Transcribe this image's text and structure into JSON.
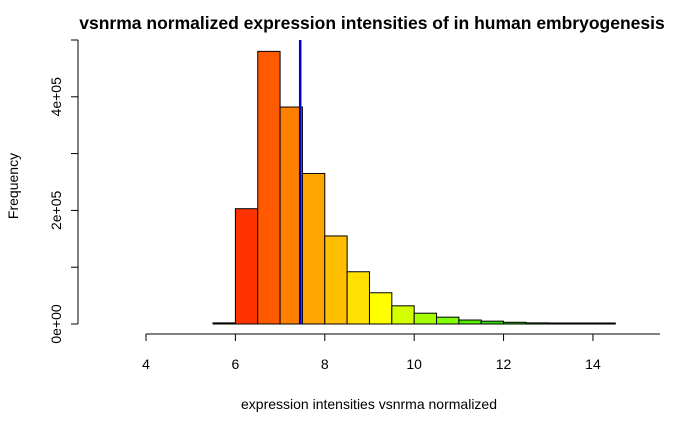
{
  "chart_data": {
    "type": "bar",
    "title": "vsnrma normalized expression intensities of in human embryogenesis",
    "xlabel": "expression intensities vsnrma normalized",
    "ylabel": "Frequency",
    "xlim": [
      4,
      15.5
    ],
    "ylim": [
      0,
      500000
    ],
    "x_ticks": [
      4,
      6,
      8,
      10,
      12,
      14
    ],
    "x_tick_labels": [
      "4",
      "6",
      "8",
      "10",
      "12",
      "14"
    ],
    "y_ticks": [
      0,
      100000,
      200000,
      300000,
      400000,
      500000
    ],
    "y_tick_labels": [
      "0e+00",
      "",
      "2e+05",
      "",
      "4e+05",
      ""
    ],
    "bins": [
      {
        "x0": 5.5,
        "x1": 6.0,
        "value": 2000,
        "color": "#000000"
      },
      {
        "x0": 6.0,
        "x1": 6.5,
        "value": 203000,
        "color": "#ff3300"
      },
      {
        "x0": 6.5,
        "x1": 7.0,
        "value": 480000,
        "color": "#ff5a00"
      },
      {
        "x0": 7.0,
        "x1": 7.5,
        "value": 382000,
        "color": "#ff8000"
      },
      {
        "x0": 7.5,
        "x1": 8.0,
        "value": 265000,
        "color": "#ffa500"
      },
      {
        "x0": 8.0,
        "x1": 8.5,
        "value": 155000,
        "color": "#ffbf00"
      },
      {
        "x0": 8.5,
        "x1": 9.0,
        "value": 92000,
        "color": "#ffe000"
      },
      {
        "x0": 9.0,
        "x1": 9.5,
        "value": 55000,
        "color": "#ffff00"
      },
      {
        "x0": 9.5,
        "x1": 10.0,
        "value": 32000,
        "color": "#d4ff00"
      },
      {
        "x0": 10.0,
        "x1": 10.5,
        "value": 19000,
        "color": "#a6ff00"
      },
      {
        "x0": 10.5,
        "x1": 11.0,
        "value": 12000,
        "color": "#80ff00"
      },
      {
        "x0": 11.0,
        "x1": 11.5,
        "value": 7000,
        "color": "#55ee00"
      },
      {
        "x0": 11.5,
        "x1": 12.0,
        "value": 5000,
        "color": "#33dd00"
      },
      {
        "x0": 12.0,
        "x1": 12.5,
        "value": 3000,
        "color": "#22cc00"
      },
      {
        "x0": 12.5,
        "x1": 13.0,
        "value": 2000,
        "color": "#11bb00"
      },
      {
        "x0": 13.0,
        "x1": 13.5,
        "value": 1000,
        "color": "#000000"
      },
      {
        "x0": 13.5,
        "x1": 14.0,
        "value": 800,
        "color": "#000000"
      },
      {
        "x0": 14.0,
        "x1": 14.5,
        "value": 500,
        "color": "#000000"
      }
    ],
    "vline": {
      "x": 7.45,
      "color": "#0000cc"
    },
    "grid": false,
    "legend": "none"
  }
}
